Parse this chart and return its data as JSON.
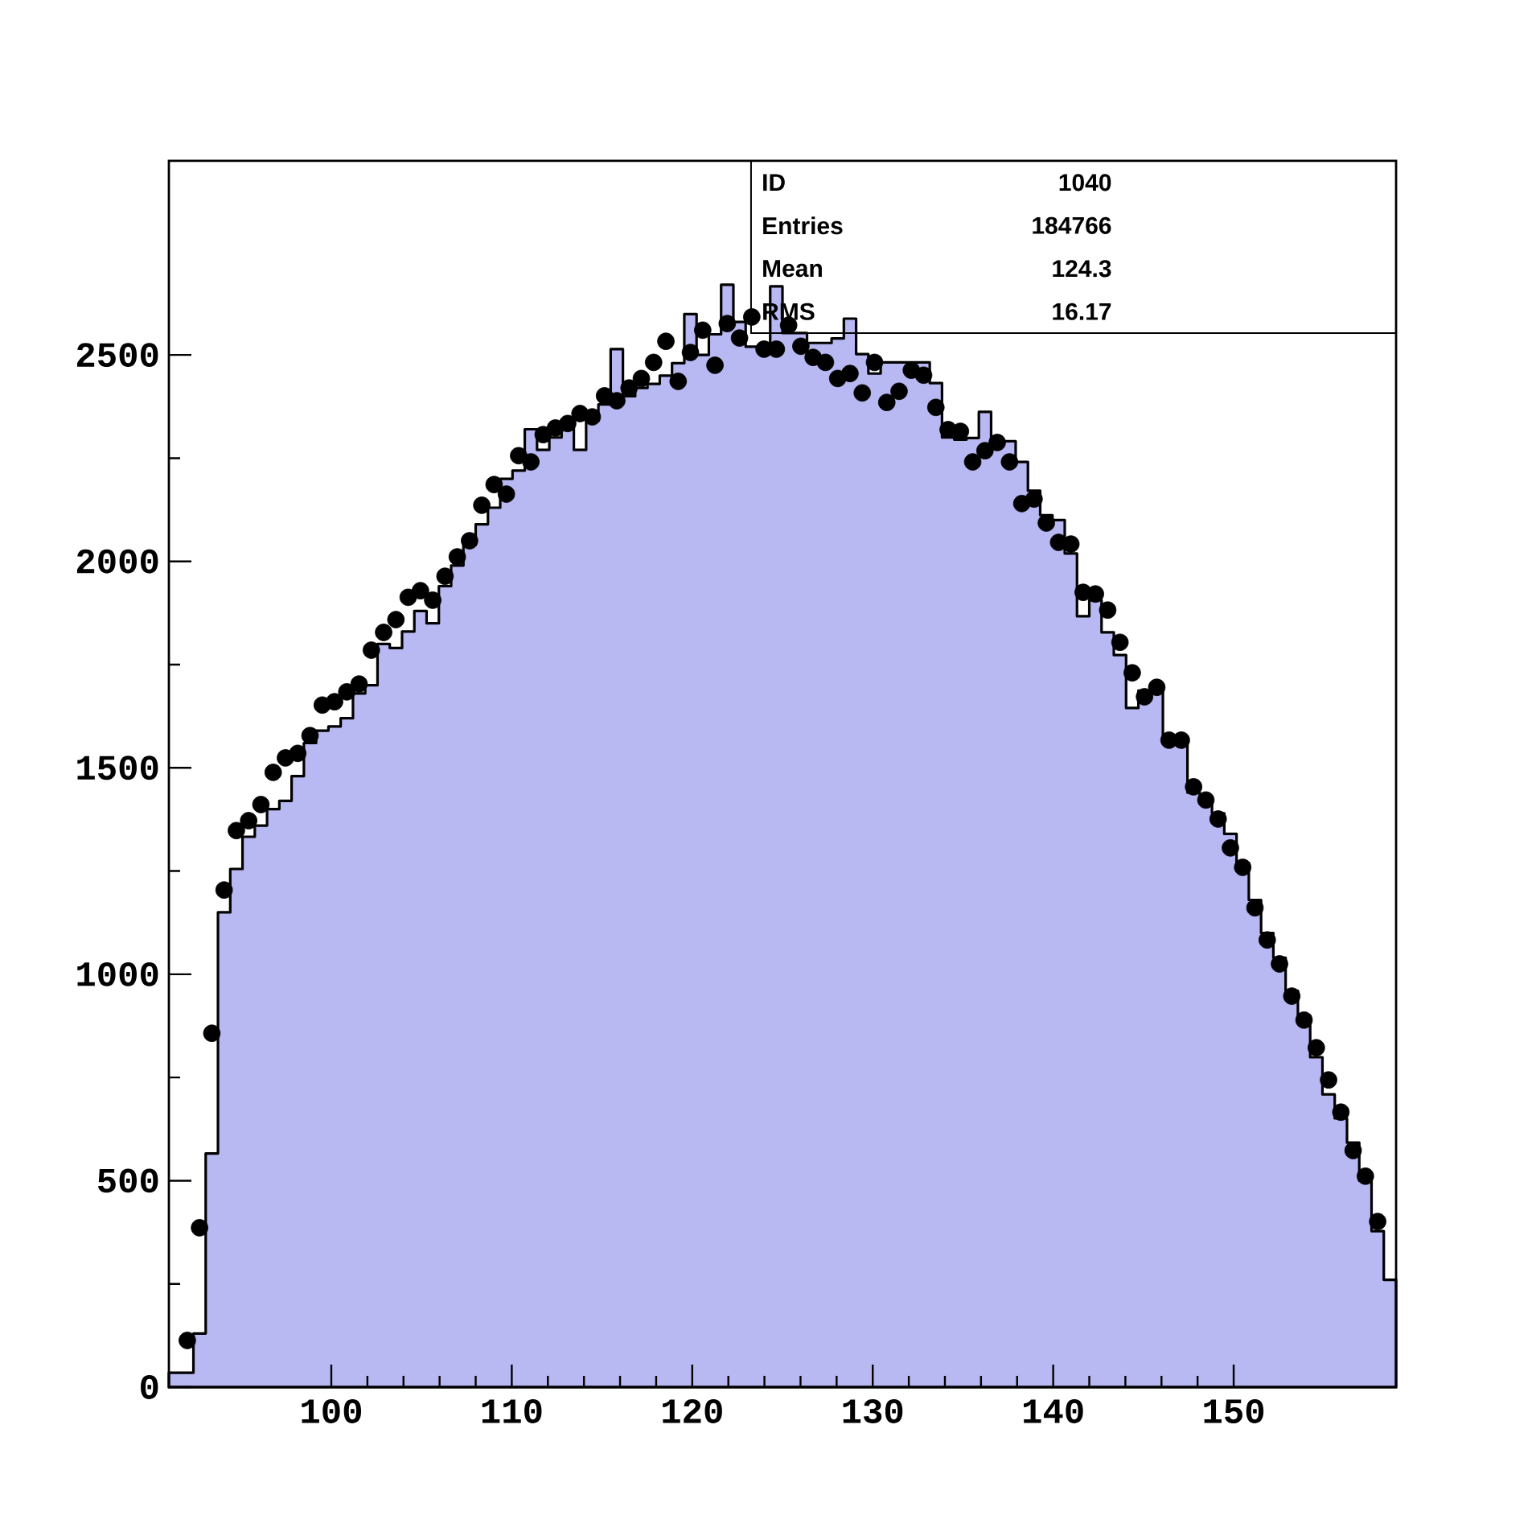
{
  "chart_data": {
    "type": "histogram",
    "bins": [
      91,
      91.68,
      92.36,
      93.04,
      93.72,
      94.4,
      95.08,
      95.76,
      96.44,
      97.12,
      97.8,
      98.48,
      99.16,
      99.84,
      100.52,
      101.2,
      101.88,
      102.56,
      103.24,
      103.92,
      104.6,
      105.28,
      105.96,
      106.64,
      107.32,
      108,
      108.68,
      109.36,
      110.04,
      110.72,
      111.4,
      112.08,
      112.76,
      113.44,
      114.12,
      114.8,
      115.48,
      116.16,
      116.84,
      117.52,
      118.2,
      118.88,
      119.56,
      120.24,
      120.92,
      121.6,
      122.28,
      122.96,
      123.64,
      124.32,
      125,
      125.68,
      126.36,
      127.04,
      127.72,
      128.4,
      129.08,
      129.76,
      130.44,
      131.12,
      131.8,
      132.48,
      133.16,
      133.84,
      134.52,
      135.2,
      135.88,
      136.56,
      137.24,
      137.92,
      138.6,
      139.28,
      139.96,
      140.64,
      141.32,
      142,
      142.68,
      143.36,
      144.04,
      144.72,
      145.4,
      146.08,
      146.76,
      147.44,
      148.12,
      148.8,
      149.48,
      150.16,
      150.84,
      151.52,
      152.2,
      152.88,
      153.56,
      154.24,
      154.92,
      155.6,
      156.28,
      156.96,
      157.64,
      158.32,
      159
    ],
    "series": [
      {
        "color": "#b8b8f2",
        "values": [
          35,
          35,
          130,
          566,
          1150,
          1255,
          1333,
          1360,
          1400,
          1420,
          1480,
          1560,
          1590,
          1600,
          1620,
          1680,
          1700,
          1800,
          1790,
          1830,
          1880,
          1850,
          1940,
          1990,
          2040,
          2090,
          2130,
          2200,
          2220,
          2320,
          2270,
          2300,
          2330,
          2270,
          2340,
          2380,
          2514,
          2400,
          2420,
          2430,
          2450,
          2480,
          2599,
          2500,
          2550,
          2670,
          2580,
          2520,
          2510,
          2666,
          2553,
          2553,
          2529,
          2529,
          2540,
          2588,
          2502,
          2455,
          2482,
          2482,
          2482,
          2482,
          2432,
          2300,
          2295,
          2299,
          2362,
          2295,
          2291,
          2241,
          2171,
          2112,
          2100,
          2019,
          1867,
          1906,
          1828,
          1773,
          1645,
          1687,
          1687,
          1567,
          1560,
          1440,
          1420,
          1390,
          1340,
          1270,
          1180,
          1100,
          1040,
          960,
          900,
          799,
          709,
          651,
          592,
          500,
          378,
          260
        ]
      },
      {
        "type": "scatter",
        "color": "#000000",
        "marker": "circle",
        "x": [
          92.02,
          92.7,
          93.38,
          94.06,
          94.74,
          95.42,
          96.1,
          96.78,
          97.46,
          98.14,
          98.82,
          99.5,
          100.18,
          100.86,
          101.54,
          102.22,
          102.9,
          103.58,
          104.26,
          104.94,
          105.62,
          106.3,
          106.98,
          107.66,
          108.34,
          109.02,
          109.7,
          110.38,
          111.06,
          111.74,
          112.42,
          113.1,
          113.78,
          114.46,
          115.14,
          115.82,
          116.5,
          117.18,
          117.86,
          118.54,
          119.22,
          119.9,
          120.58,
          121.26,
          121.94,
          122.62,
          123.3,
          123.98,
          124.66,
          125.34,
          126.02,
          126.7,
          127.38,
          128.06,
          128.74,
          129.42,
          130.1,
          130.78,
          131.46,
          132.14,
          132.82,
          133.5,
          134.18,
          134.86,
          135.54,
          136.22,
          136.9,
          137.58,
          138.26,
          138.94,
          139.62,
          140.3,
          140.98,
          141.66,
          142.34,
          143.02,
          143.7,
          144.38,
          145.06,
          145.74,
          146.42,
          147.1,
          147.78,
          148.46,
          149.14,
          149.82,
          150.5,
          151.18,
          151.86,
          152.54,
          153.22,
          153.9,
          154.58,
          155.26,
          155.94,
          156.62,
          157.3,
          157.98
        ],
        "values": [
          113,
          386,
          857,
          1204,
          1348,
          1372,
          1411,
          1489,
          1524,
          1535,
          1578,
          1652,
          1660,
          1684,
          1703,
          1785,
          1828,
          1859,
          1913,
          1929,
          1906,
          1964,
          2011,
          2050,
          2136,
          2186,
          2163,
          2256,
          2241,
          2307,
          2323,
          2334,
          2358,
          2350,
          2401,
          2389,
          2420,
          2443,
          2482,
          2533,
          2436,
          2506,
          2560,
          2475,
          2576,
          2541,
          2592,
          2514,
          2514,
          2572,
          2521,
          2494,
          2482,
          2443,
          2455,
          2408,
          2482,
          2385,
          2412,
          2463,
          2451,
          2373,
          2319,
          2315,
          2241,
          2268,
          2288,
          2241,
          2140,
          2151,
          2093,
          2046,
          2042,
          1925,
          1921,
          1882,
          1804,
          1730,
          1672,
          1695,
          1567,
          1567,
          1454,
          1422,
          1376,
          1306,
          1259,
          1161,
          1083,
          1025,
          947,
          889,
          822,
          744,
          666,
          573,
          511,
          401
        ]
      }
    ],
    "xlim": [
      91,
      159
    ],
    "ylim": [
      0,
      2970
    ],
    "xticks": [
      100,
      110,
      120,
      130,
      140,
      150
    ],
    "yticks": [
      0,
      500,
      1000,
      1500,
      2000,
      2500
    ],
    "annotations": [
      "ID",
      "1040",
      "Entries",
      "184766",
      "Mean",
      "124.3",
      "RMS",
      "16.17"
    ]
  }
}
